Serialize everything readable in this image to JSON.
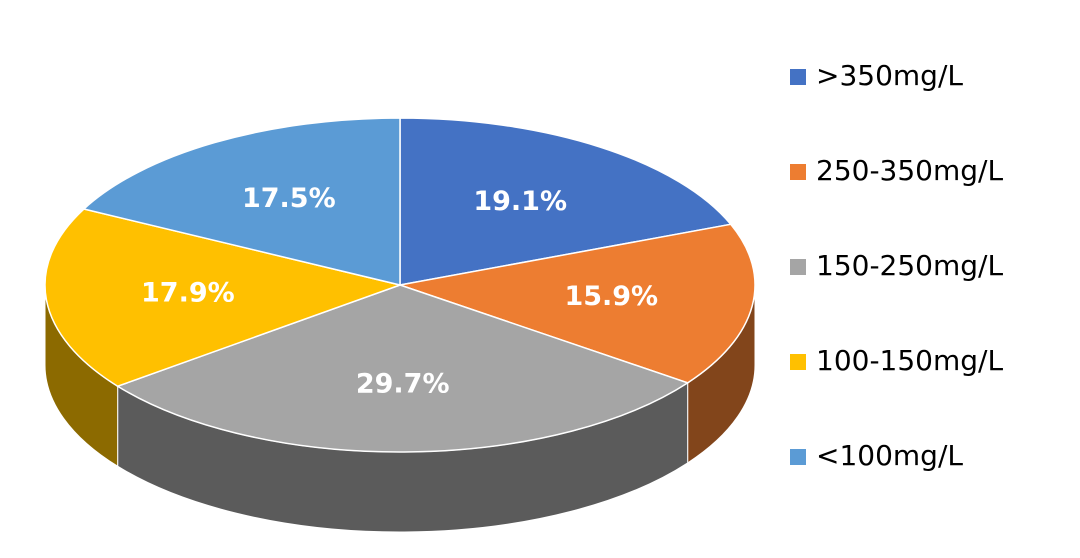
{
  "chart_data": {
    "type": "pie",
    "categories": [
      ">350mg/L",
      "250-350mg/L",
      "150-250mg/L",
      "100-150mg/L",
      "<100mg/L"
    ],
    "values": [
      19.1,
      15.9,
      29.7,
      17.9,
      17.5
    ],
    "value_labels": [
      "19.1%",
      "15.9%",
      "29.7%",
      "17.9%",
      "17.5%"
    ],
    "colors": [
      "#4472c4",
      "#ed7d31",
      "#a5a5a5",
      "#ffc000",
      "#5b9bd5"
    ],
    "legend": "right"
  }
}
